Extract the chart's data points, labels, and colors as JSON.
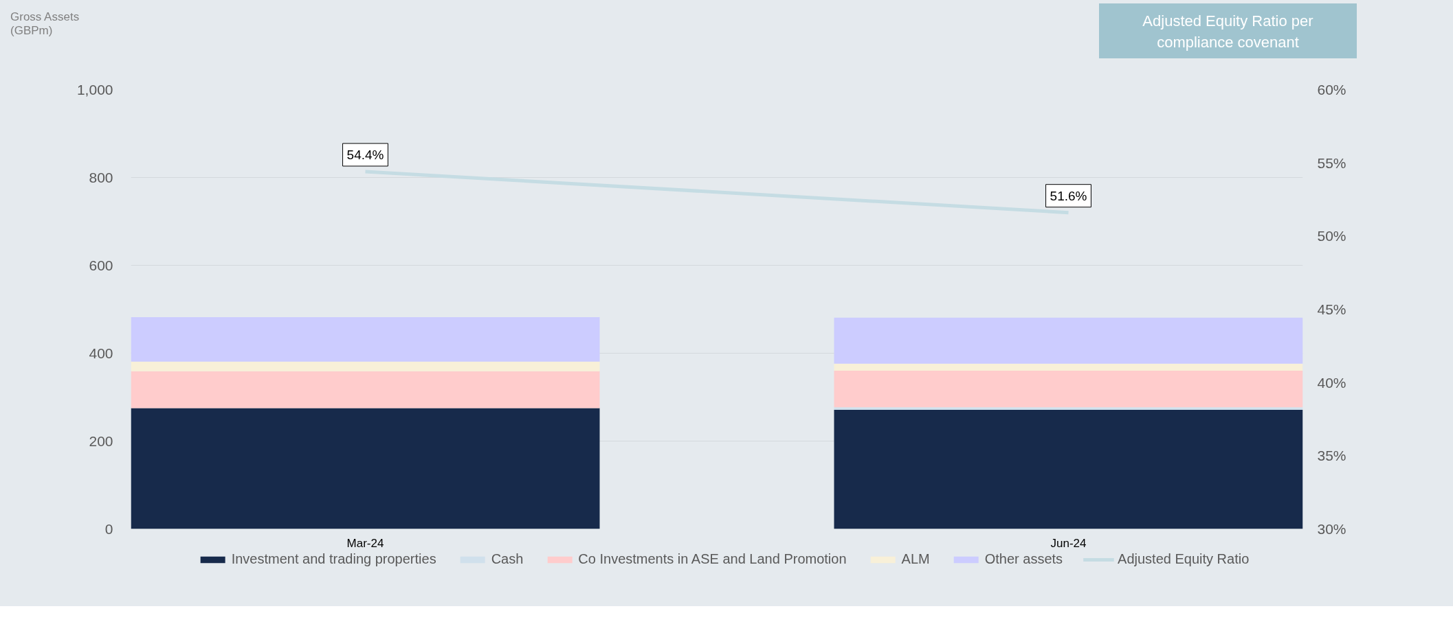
{
  "chart_data": {
    "type": "bar",
    "stacked": true,
    "title": "Adjusted Equity Ratio per compliance covenant",
    "ylabel": "Gross Assets (GBPm)",
    "categories": [
      "Mar-24",
      "Jun-24"
    ],
    "series": [
      {
        "name": "Investment and trading properties",
        "color": "#172a4b",
        "values": [
          275,
          271
        ]
      },
      {
        "name": "Cash",
        "color": "#d0e0ec",
        "values": [
          null,
          6
        ]
      },
      {
        "name": "Co Investments in ASE and Land Promotion",
        "color": "#ffcccc",
        "values": [
          84,
          83
        ]
      },
      {
        "name": "ALM",
        "color": "#f8f0d8",
        "values": [
          22,
          16
        ]
      },
      {
        "name": "Other assets",
        "color": "#ccccff",
        "values": [
          101,
          105
        ]
      },
      {
        "name": "Adjusted Equity Ratio",
        "type": "line",
        "axis": "y2",
        "color": "#c5dce3",
        "values": [
          54.4,
          51.6
        ],
        "value_labels": [
          "54.4%",
          "51.6%"
        ]
      }
    ],
    "ylim": [
      0,
      1000
    ],
    "yticks": [
      0,
      200,
      400,
      600,
      800,
      {
        "value": 1000,
        "label": "1,000"
      }
    ],
    "y2lim": [
      30,
      60
    ],
    "y2ticks": [
      {
        "value": 30,
        "label": "30%"
      },
      {
        "value": 35,
        "label": "35%"
      },
      {
        "value": 40,
        "label": "40%"
      },
      {
        "value": 45,
        "label": "45%"
      },
      {
        "value": 50,
        "label": "50%"
      },
      {
        "value": 55,
        "label": "55%"
      },
      {
        "value": 60,
        "label": "60%"
      }
    ],
    "grid": "y",
    "legend": "bottom"
  }
}
